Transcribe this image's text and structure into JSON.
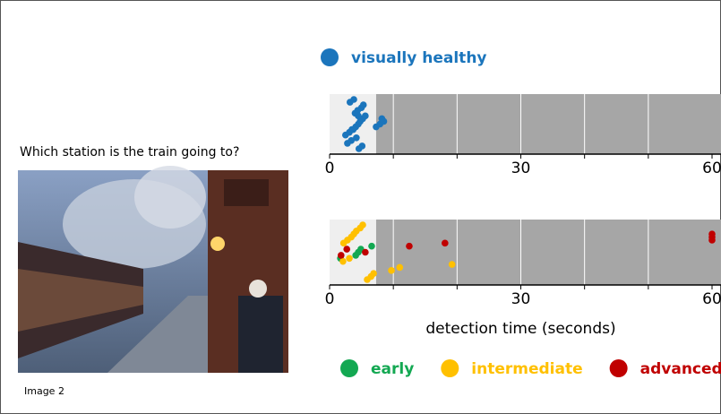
{
  "question": "Which station is the train going to?",
  "image_caption": "Image 2",
  "chart_data": [
    {
      "type": "strip",
      "series": [
        {
          "name": "visually healthy",
          "color": "#1b75bc",
          "values": [
            3.5,
            4.1,
            4.5,
            4.8,
            5.2,
            5.6,
            4.0,
            4.4,
            5.0,
            5.3,
            3.2,
            3.8,
            4.6,
            5.1,
            2.8,
            3.4,
            4.2,
            2.5,
            3.1,
            3.7,
            7.3,
            7.9,
            8.5,
            8.2,
            4.5
          ]
        }
      ],
      "xlim": [
        0,
        60
      ],
      "xticks": [
        0,
        30,
        60
      ],
      "xminor": [
        10,
        20,
        40,
        50
      ],
      "shade": [
        0,
        7.3
      ],
      "legend": "top"
    },
    {
      "type": "strip",
      "xlabel": "detection time (seconds)",
      "series": [
        {
          "name": "early",
          "color": "#13a852",
          "values": [
            1.7,
            4.1,
            4.5,
            4.9,
            6.6
          ]
        },
        {
          "name": "intermediate",
          "color": "#ffc000",
          "values": [
            2.2,
            2.8,
            3.4,
            3.8,
            4.2,
            4.8,
            5.2,
            5.9,
            6.5,
            6.9,
            9.7,
            11.0,
            19.2,
            2.1,
            3.1
          ]
        },
        {
          "name": "advanced",
          "color": "#c00000",
          "values": [
            1.8,
            5.6,
            2.7,
            12.5,
            18.1,
            60,
            60,
            60
          ]
        }
      ],
      "xlim": [
        0,
        60
      ],
      "xticks": [
        0,
        30,
        60
      ],
      "xminor": [
        10,
        20,
        40,
        50
      ],
      "shade": [
        0,
        7.3
      ],
      "legend": "bottom"
    }
  ]
}
